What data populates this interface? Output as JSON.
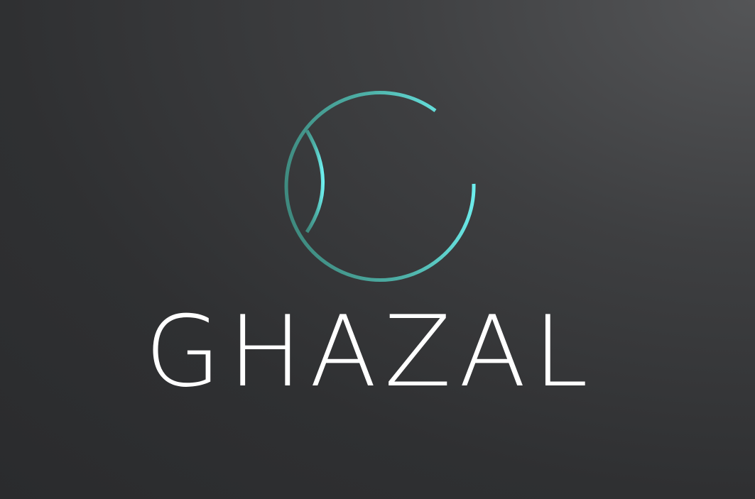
{
  "brand": {
    "name": "GHAZAL",
    "colors": {
      "background_dark": "#2a2b2d",
      "background_light": "#545557",
      "emblem_gradient_start": "#3f8a7f",
      "emblem_gradient_end": "#6ff2f2",
      "wordmark": "#ffffff"
    },
    "emblem_icon": "g-monogram-icon"
  }
}
